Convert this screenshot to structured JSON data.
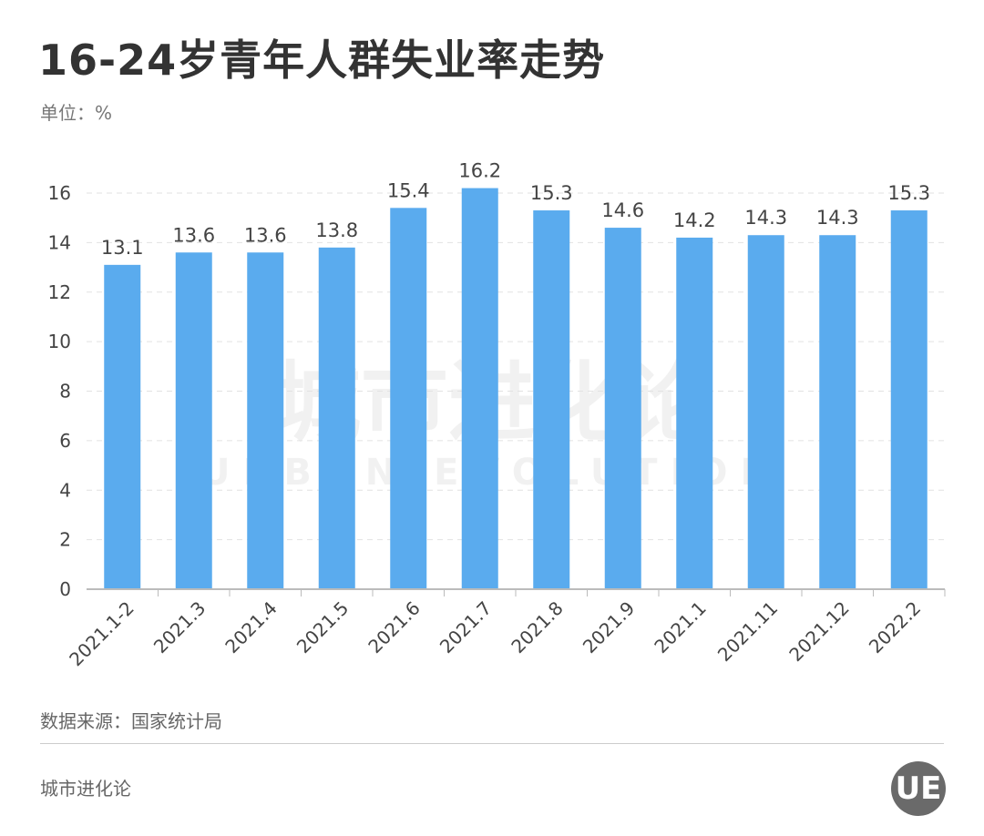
{
  "title": "16-24岁青年人群失业率走势",
  "unit": "单位：%",
  "source": "数据来源：国家统计局",
  "brand": "城市进化论",
  "logo": "UE",
  "watermark": {
    "cn": "城市进化论",
    "en": "URBAN EVOLUTION"
  },
  "chart_data": {
    "type": "bar",
    "categories": [
      "2021.1-2",
      "2021.3",
      "2021.4",
      "2021.5",
      "2021.6",
      "2021.7",
      "2021.8",
      "2021.9",
      "2021.1",
      "2021.11",
      "2021.12",
      "2022.2"
    ],
    "values": [
      13.1,
      13.6,
      13.6,
      13.8,
      15.4,
      16.2,
      15.3,
      14.6,
      14.2,
      14.3,
      14.3,
      15.3
    ],
    "ylim": [
      0,
      16
    ],
    "yticks": [
      0,
      2,
      4,
      6,
      8,
      10,
      12,
      14,
      16
    ],
    "grid": true,
    "bar_color": "#5aabee"
  }
}
